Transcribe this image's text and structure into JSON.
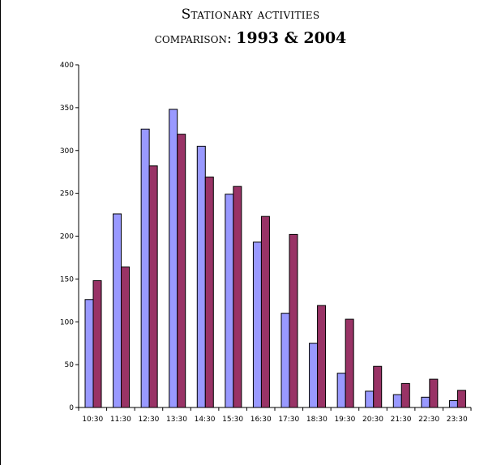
{
  "chart_data": {
    "type": "bar",
    "title_line1": "Stationary activities",
    "title_line2_text": "comparison:",
    "title_line2_years": "1993 & 2004",
    "categories": [
      "10:30",
      "11:30",
      "12:30",
      "13:30",
      "14:30",
      "15:30",
      "16:30",
      "17:30",
      "18:30",
      "19:30",
      "20:30",
      "21:30",
      "22:30",
      "23:30"
    ],
    "series": [
      {
        "values": [
          126,
          226,
          325,
          348,
          305,
          249,
          193,
          110,
          75,
          40,
          19,
          15,
          12,
          8
        ],
        "color": "#9999ff"
      },
      {
        "values": [
          148,
          164,
          282,
          319,
          269,
          258,
          223,
          202,
          119,
          103,
          48,
          28,
          33,
          20
        ],
        "color": "#993366"
      }
    ],
    "y_ticks": [
      0,
      50,
      100,
      150,
      200,
      250,
      300,
      350,
      400
    ],
    "ylim": [
      0,
      400
    ],
    "xlabel": "",
    "ylabel": "",
    "grid": false,
    "legend": "none"
  }
}
